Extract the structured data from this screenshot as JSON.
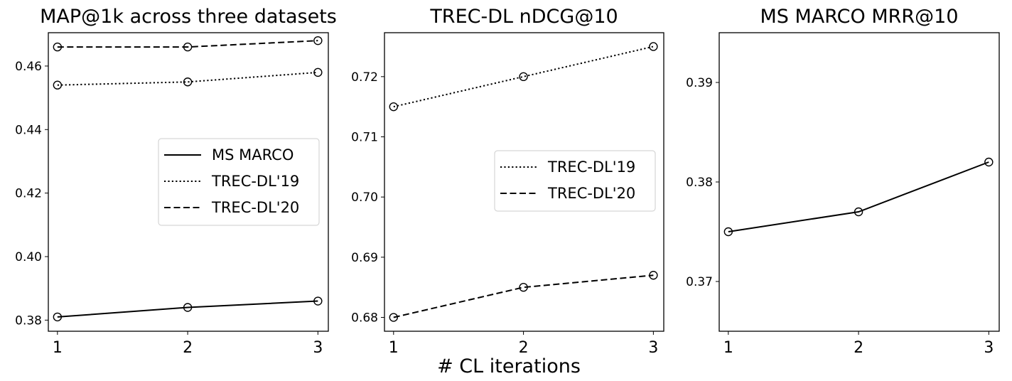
{
  "figure": {
    "xlabel": "# CL iterations"
  },
  "chart_data": [
    {
      "type": "line",
      "title": "MAP@1k across three datasets",
      "xlabel": "",
      "ylabel": "",
      "x": [
        1,
        2,
        3
      ],
      "xlim": [
        0.93,
        3.08
      ],
      "ylim": [
        0.3765,
        0.4705
      ],
      "yticks": [
        0.38,
        0.4,
        0.42,
        0.44,
        0.46
      ],
      "ytick_labels": [
        "0.38",
        "0.40",
        "0.42",
        "0.44",
        "0.46"
      ],
      "xtick_labels": [
        "1",
        "2",
        "3"
      ],
      "legend": "center-right",
      "series": [
        {
          "name": "MS MARCO",
          "style": "solid",
          "values": [
            0.381,
            0.384,
            0.386
          ]
        },
        {
          "name": "TREC-DL'19",
          "style": "dotted",
          "values": [
            0.454,
            0.455,
            0.458
          ]
        },
        {
          "name": "TREC-DL'20",
          "style": "dashed",
          "values": [
            0.466,
            0.466,
            0.468
          ]
        }
      ]
    },
    {
      "type": "line",
      "title": "TREC-DL nDCG@10",
      "xlabel": "",
      "ylabel": "",
      "x": [
        1,
        2,
        3
      ],
      "xlim": [
        0.93,
        3.08
      ],
      "ylim": [
        0.6777,
        0.7273
      ],
      "yticks": [
        0.68,
        0.69,
        0.7,
        0.71,
        0.72
      ],
      "ytick_labels": [
        "0.68",
        "0.69",
        "0.70",
        "0.71",
        "0.72"
      ],
      "xtick_labels": [
        "1",
        "2",
        "3"
      ],
      "legend": "center-right",
      "series": [
        {
          "name": "TREC-DL'19",
          "style": "dotted",
          "values": [
            0.715,
            0.72,
            0.725
          ]
        },
        {
          "name": "TREC-DL'20",
          "style": "dashed",
          "values": [
            0.68,
            0.685,
            0.687
          ]
        }
      ]
    },
    {
      "type": "line",
      "title": "MS MARCO MRR@10",
      "xlabel": "",
      "ylabel": "",
      "x": [
        1,
        2,
        3
      ],
      "xlim": [
        0.93,
        3.08
      ],
      "ylim": [
        0.365,
        0.395
      ],
      "yticks": [
        0.37,
        0.38,
        0.39
      ],
      "ytick_labels": [
        "0.37",
        "0.38",
        "0.39"
      ],
      "xtick_labels": [
        "1",
        "2",
        "3"
      ],
      "legend": "none",
      "series": [
        {
          "name": "MS MARCO",
          "style": "solid",
          "values": [
            0.375,
            0.377,
            0.382
          ]
        }
      ]
    }
  ]
}
